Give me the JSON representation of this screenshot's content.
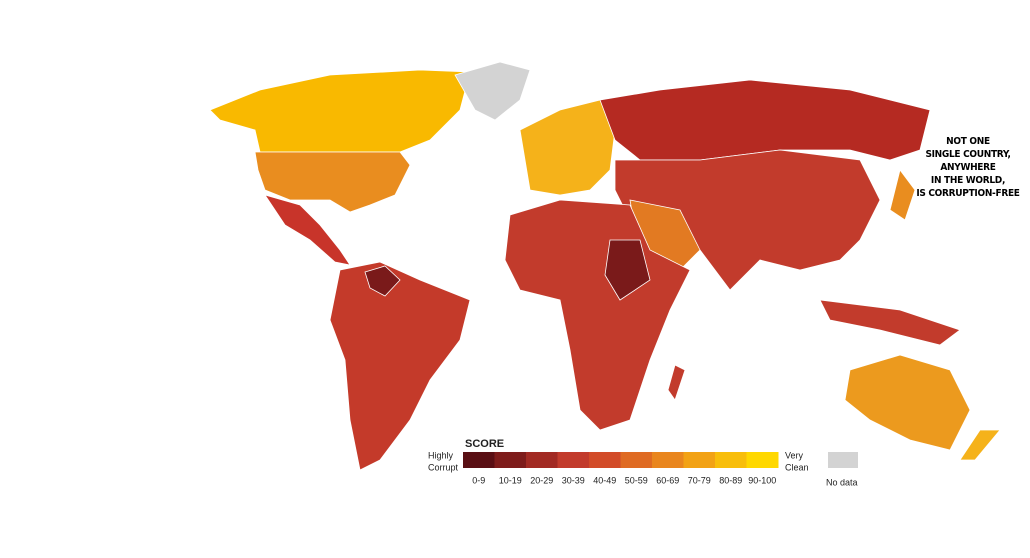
{
  "annotation": {
    "lines": [
      "NOT ONE",
      "SINGLE COUNTRY,",
      "ANYWHERE",
      "IN THE WORLD,",
      "IS CORRUPTION-FREE"
    ]
  },
  "legend": {
    "title": "SCORE",
    "low_label": [
      "Highly",
      "Corrupt"
    ],
    "high_label": [
      "Very",
      "Clean"
    ],
    "ranges": [
      "0-9",
      "10-19",
      "20-29",
      "30-39",
      "40-49",
      "50-59",
      "60-69",
      "70-79",
      "80-89",
      "90-100"
    ],
    "colors": [
      "#5a0f14",
      "#7e1c1b",
      "#a22a23",
      "#c23b2c",
      "#d24b28",
      "#df6b23",
      "#e9861e",
      "#f2a215",
      "#f8be0b",
      "#ffd800"
    ],
    "no_data_label": "No data",
    "no_data_color": "#d3d3d3"
  }
}
